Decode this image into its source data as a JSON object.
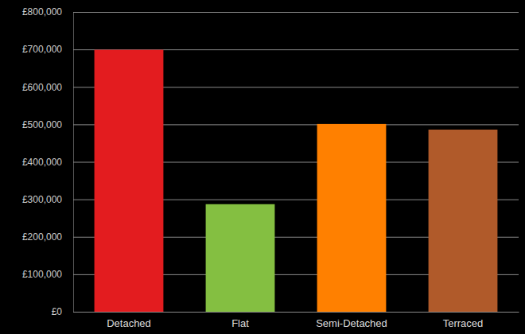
{
  "chart_data": {
    "type": "bar",
    "categories": [
      "Detached",
      "Flat",
      "Semi-Detached",
      "Terraced"
    ],
    "values": [
      699000,
      287000,
      501000,
      486000
    ],
    "colors": [
      "#e31c1f",
      "#84bf41",
      "#ff8000",
      "#b05a2a"
    ],
    "ylim": [
      0,
      800000
    ],
    "yticks": [
      {
        "value": 0,
        "label": "£0"
      },
      {
        "value": 100000,
        "label": "£100,000"
      },
      {
        "value": 200000,
        "label": "£200,000"
      },
      {
        "value": 300000,
        "label": "£300,000"
      },
      {
        "value": 400000,
        "label": "£400,000"
      },
      {
        "value": 500000,
        "label": "£500,000"
      },
      {
        "value": 600000,
        "label": "£600,000"
      },
      {
        "value": 700000,
        "label": "£700,000"
      },
      {
        "value": 800000,
        "label": "£800,000"
      }
    ],
    "grid": true
  }
}
